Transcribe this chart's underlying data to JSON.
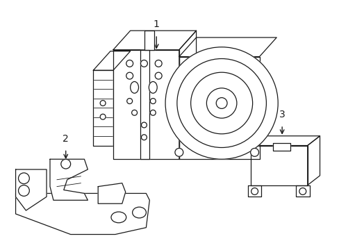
{
  "bg_color": "#ffffff",
  "line_color": "#1a1a1a",
  "fig_width": 4.89,
  "fig_height": 3.6,
  "dpi": 100,
  "label1": "1",
  "label2": "2",
  "label3": "3"
}
